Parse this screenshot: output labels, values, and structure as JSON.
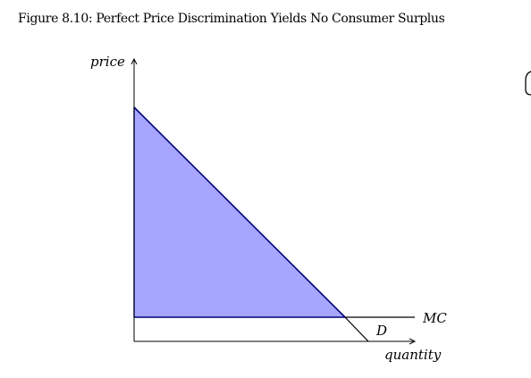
{
  "title": "Figure 8.10: Perfect Price Discrimination Yields No Consumer Surplus",
  "diagram": {
    "y_axis_label": "price",
    "x_axis_label": "quantity",
    "mc_label": "MC",
    "demand_label": "D",
    "colors": {
      "surplus_fill": "#a6a6ff",
      "demand_line": "#00007a",
      "axis": "#000000"
    }
  }
}
